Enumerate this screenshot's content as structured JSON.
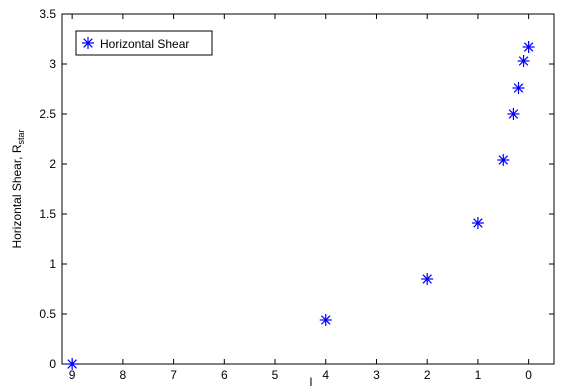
{
  "chart_data": {
    "type": "scatter",
    "title": "",
    "xlabel": "l",
    "ylabel": "Horizontal Shear, R",
    "ylabel_sub": "star",
    "x_reversed": true,
    "xlim": [
      9.2,
      -0.5
    ],
    "ylim": [
      0,
      3.5
    ],
    "xticks": [
      9,
      8,
      7,
      6,
      5,
      4,
      3,
      2,
      1,
      0
    ],
    "yticks": [
      0,
      0.5,
      1,
      1.5,
      2,
      2.5,
      3,
      3.5
    ],
    "grid": false,
    "legend_position": "top-left",
    "series": [
      {
        "name": "Horizontal Shear",
        "color": "#0000ff",
        "marker": "asterisk",
        "points": [
          {
            "x": 9,
            "y": 0
          },
          {
            "x": 4,
            "y": 0.44
          },
          {
            "x": 2,
            "y": 0.85
          },
          {
            "x": 1,
            "y": 1.41
          },
          {
            "x": 0.5,
            "y": 2.04
          },
          {
            "x": 0.3,
            "y": 2.5
          },
          {
            "x": 0.2,
            "y": 2.76
          },
          {
            "x": 0.1,
            "y": 3.03
          },
          {
            "x": 0,
            "y": 3.17
          }
        ]
      }
    ]
  }
}
